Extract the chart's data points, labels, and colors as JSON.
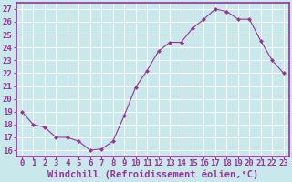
{
  "x": [
    0,
    1,
    2,
    3,
    4,
    5,
    6,
    7,
    8,
    9,
    10,
    11,
    12,
    13,
    14,
    15,
    16,
    17,
    18,
    19,
    20,
    21,
    22,
    23
  ],
  "y": [
    19,
    18,
    17.8,
    17,
    17,
    16.7,
    16,
    16.1,
    16.7,
    18.7,
    20.9,
    22.2,
    23.7,
    24.4,
    24.4,
    25.5,
    26.2,
    27,
    26.8,
    26.2,
    26.2,
    24.5,
    23,
    22
  ],
  "line_color": "#993399",
  "marker": "D",
  "marker_size": 2,
  "bg_color": "#c8e8ec",
  "grid_color": "#ffffff",
  "xlabel": "Windchill (Refroidissement éolien,°C)",
  "ylabel": "",
  "title": "",
  "xlim": [
    -0.5,
    23.5
  ],
  "ylim": [
    15.5,
    27.5
  ],
  "yticks": [
    16,
    17,
    18,
    19,
    20,
    21,
    22,
    23,
    24,
    25,
    26,
    27
  ],
  "xticks": [
    0,
    1,
    2,
    3,
    4,
    5,
    6,
    7,
    8,
    9,
    10,
    11,
    12,
    13,
    14,
    15,
    16,
    17,
    18,
    19,
    20,
    21,
    22,
    23
  ],
  "tick_label_size": 6.5,
  "xlabel_size": 7.5,
  "axis_color": "#993399",
  "spine_color": "#993399"
}
